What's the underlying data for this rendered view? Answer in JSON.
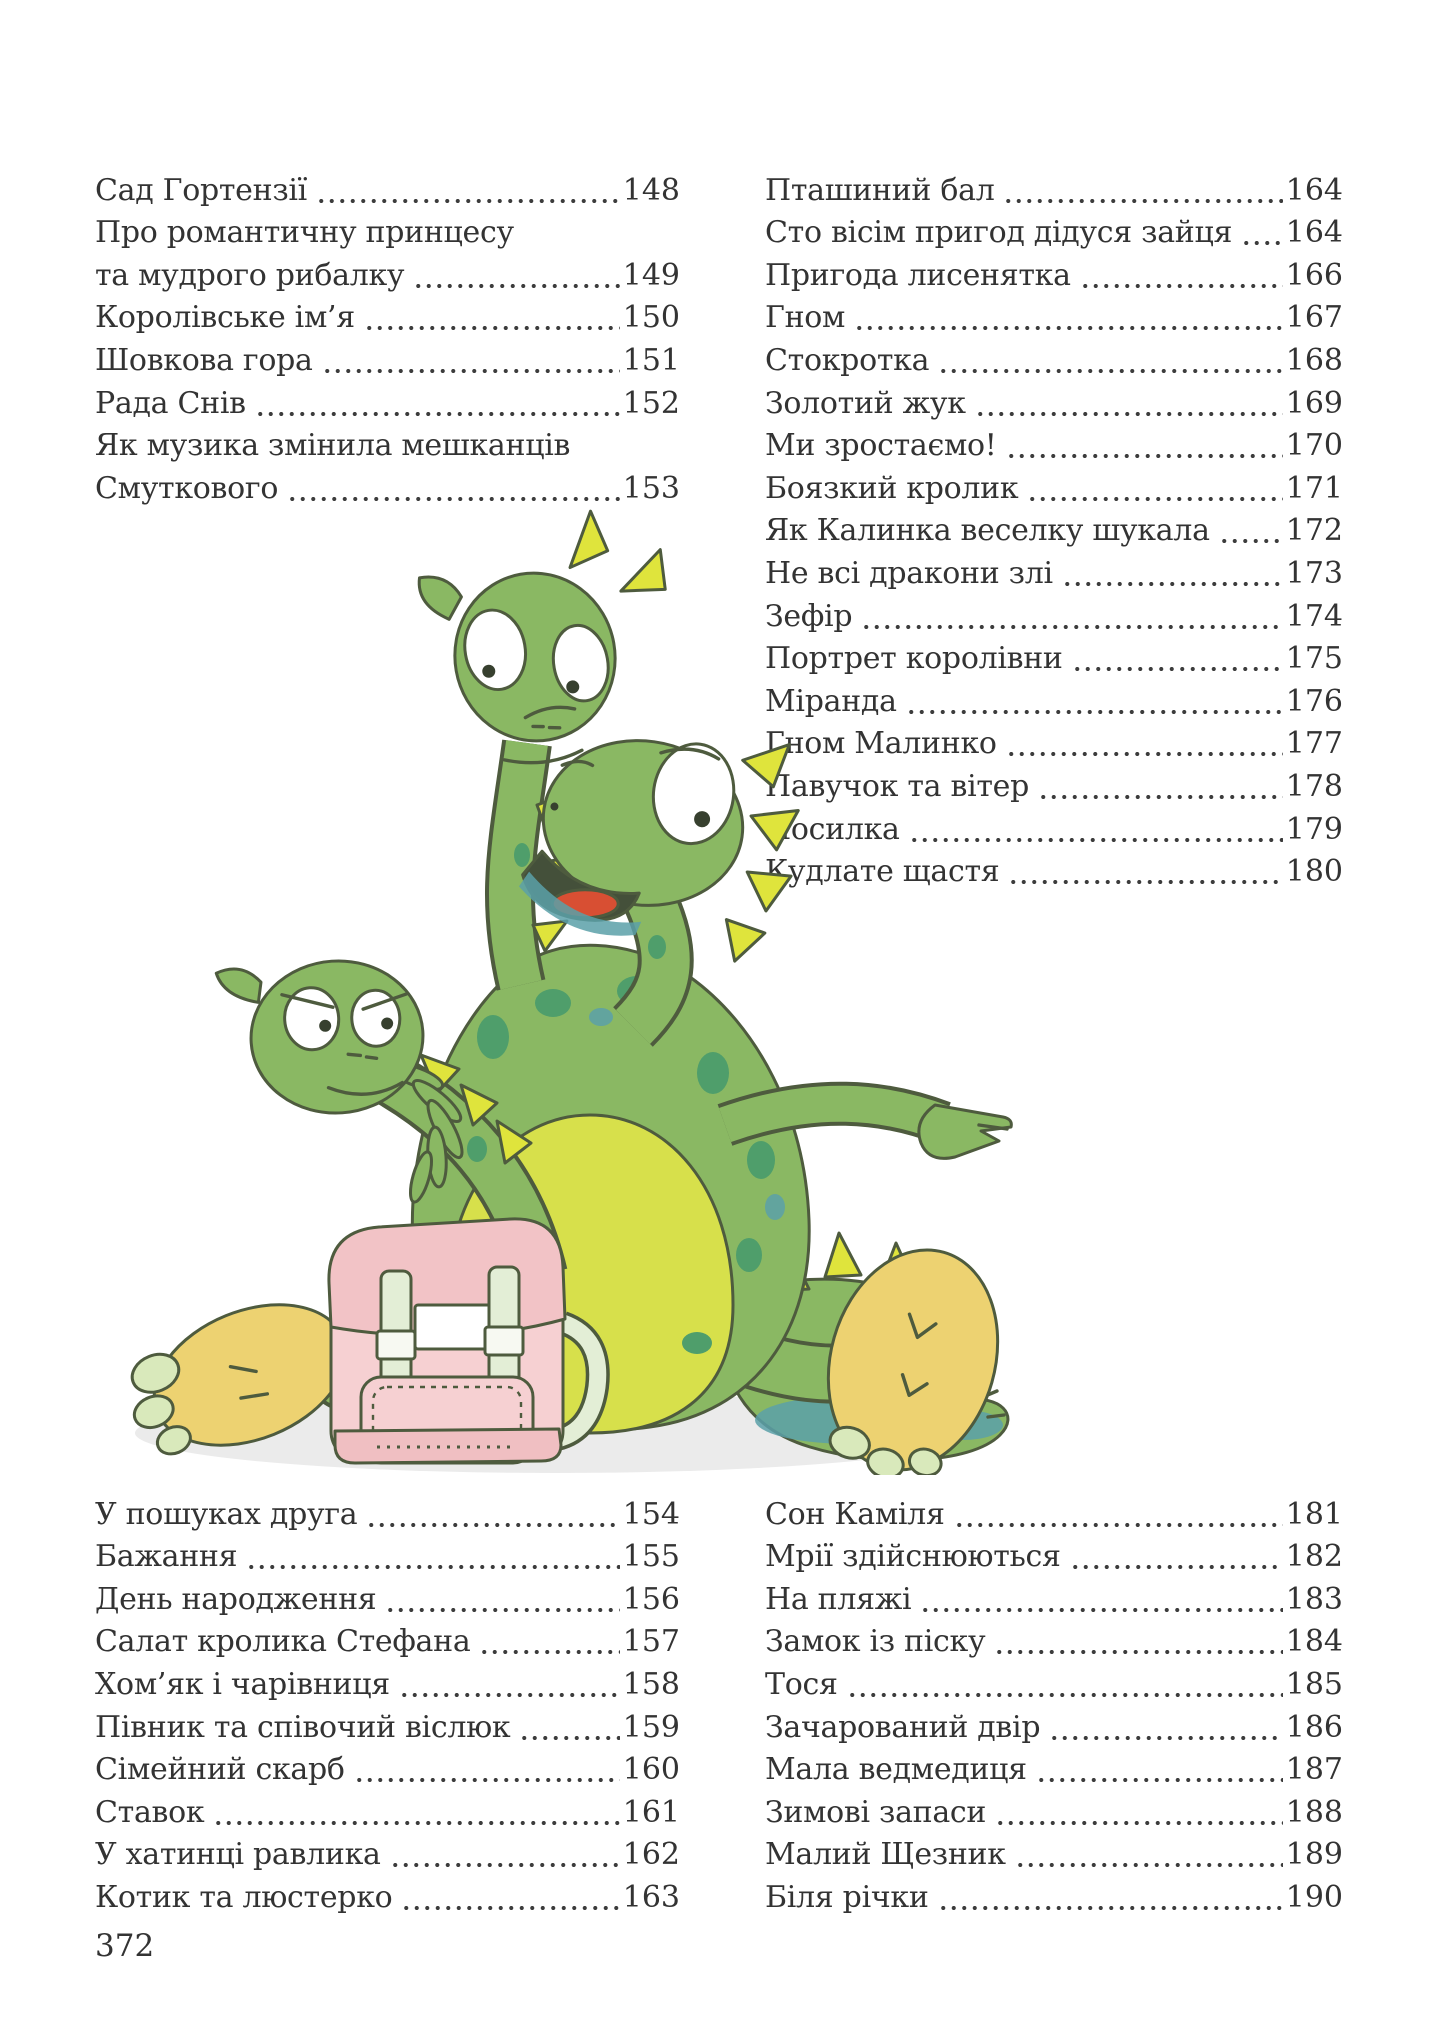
{
  "page": {
    "number": "372"
  },
  "colors": {
    "text": "#333333",
    "dots": "#3c3c3c",
    "c-line": "#4e5b3e",
    "c-body": "#8ab863",
    "c-belly": "#d7e04b",
    "c-spike": "#dfe43c",
    "c-spot": "#4f9e6b",
    "c-teal": "#5aa0a8",
    "c-foot": "#edd271",
    "c-toe": "#d9e9bb",
    "c-tongue": "#d84f33",
    "c-pack": "#f6d0d2",
    "c-pack-dark": "#f2c3c6",
    "c-strap": "#e3eed6",
    "c-shadow": "#ebebeb"
  },
  "illustration": {
    "description": "Watercolor cartoon of a sitting three-headed green dragon with yellow belly, yellow back spikes, big yellow feet, a spiked tail, one arm pointing right, and a pink school backpack standing in front"
  },
  "toc": {
    "top_left": [
      {
        "lines": [
          "Сад Гортензії"
        ],
        "page": "148"
      },
      {
        "lines": [
          "Про романтичну принцесу",
          "та мудрого рибалку"
        ],
        "page": "149"
      },
      {
        "lines": [
          "Королівське ім’я"
        ],
        "page": "150"
      },
      {
        "lines": [
          "Шовкова гора"
        ],
        "page": "151"
      },
      {
        "lines": [
          "Рада Снів"
        ],
        "page": "152"
      },
      {
        "lines": [
          "Як музика змінила мешканців",
          "Смуткового"
        ],
        "page": "153"
      }
    ],
    "top_right": [
      {
        "lines": [
          "Пташиний бал"
        ],
        "page": "164"
      },
      {
        "lines": [
          "Сто вісім пригод дідуся зайця"
        ],
        "page": "164"
      },
      {
        "lines": [
          "Пригода лисенятка"
        ],
        "page": "166"
      },
      {
        "lines": [
          "Гном"
        ],
        "page": "167"
      },
      {
        "lines": [
          "Стокротка"
        ],
        "page": "168"
      },
      {
        "lines": [
          "Золотий жук"
        ],
        "page": "169"
      },
      {
        "lines": [
          "Ми зростаємо!"
        ],
        "page": "170"
      },
      {
        "lines": [
          "Боязкий кролик"
        ],
        "page": "171"
      },
      {
        "lines": [
          "Як Калинка веселку шукала"
        ],
        "page": "172"
      },
      {
        "lines": [
          "Не всі дракони злі"
        ],
        "page": "173"
      },
      {
        "lines": [
          "Зефір"
        ],
        "page": "174"
      },
      {
        "lines": [
          "Портрет королівни"
        ],
        "page": "175"
      },
      {
        "lines": [
          "Міранда"
        ],
        "page": "176"
      },
      {
        "lines": [
          "Гном Малинко"
        ],
        "page": "177"
      },
      {
        "lines": [
          "Павучок та вітер"
        ],
        "page": "178"
      },
      {
        "lines": [
          "Посилка"
        ],
        "page": "179"
      },
      {
        "lines": [
          "Кудлате щастя"
        ],
        "page": "180"
      }
    ],
    "bottom_left": [
      {
        "lines": [
          "У пошуках друга"
        ],
        "page": "154"
      },
      {
        "lines": [
          "Бажання"
        ],
        "page": "155"
      },
      {
        "lines": [
          "День народження"
        ],
        "page": "156"
      },
      {
        "lines": [
          "Салат кролика Стефана"
        ],
        "page": "157"
      },
      {
        "lines": [
          "Хом’як і чарівниця"
        ],
        "page": "158"
      },
      {
        "lines": [
          "Півник та співочий віслюк"
        ],
        "page": "159"
      },
      {
        "lines": [
          "Сімейний скарб"
        ],
        "page": "160"
      },
      {
        "lines": [
          "Ставок"
        ],
        "page": "161"
      },
      {
        "lines": [
          "У хатинці равлика"
        ],
        "page": "162"
      },
      {
        "lines": [
          "Котик та люстерко"
        ],
        "page": "163"
      }
    ],
    "bottom_right": [
      {
        "lines": [
          "Сон Каміля"
        ],
        "page": "181"
      },
      {
        "lines": [
          "Мрії здійснюються"
        ],
        "page": "182"
      },
      {
        "lines": [
          "На пляжі"
        ],
        "page": "183"
      },
      {
        "lines": [
          "Замок із піску"
        ],
        "page": "184"
      },
      {
        "lines": [
          "Тося"
        ],
        "page": "185"
      },
      {
        "lines": [
          "Зачарований двір"
        ],
        "page": "186"
      },
      {
        "lines": [
          "Мала ведмедиця"
        ],
        "page": "187"
      },
      {
        "lines": [
          "Зимові запаси"
        ],
        "page": "188"
      },
      {
        "lines": [
          "Малий Щезник"
        ],
        "page": "189"
      },
      {
        "lines": [
          "Біля річки"
        ],
        "page": "190"
      }
    ]
  }
}
